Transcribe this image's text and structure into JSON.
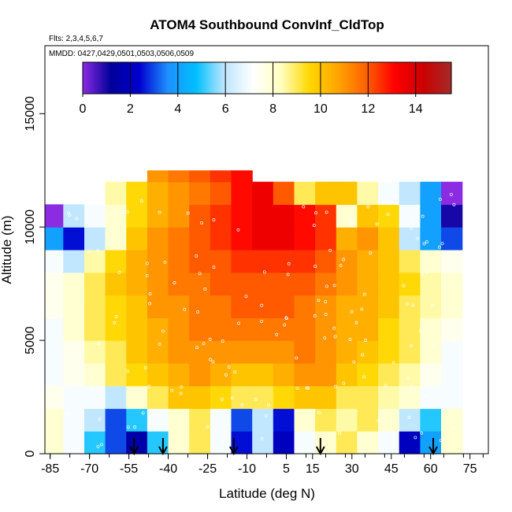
{
  "chart_data": {
    "type": "heatmap",
    "title": "ATOM4 Southbound ConvInf_CldTop",
    "notes": [
      "Flts: 2,3,4,5,6,7",
      "MMDD: 0427,0429,0501,0503,0506,0509"
    ],
    "xlabel": "Latitude (deg N)",
    "ylabel": "Altitude (m)",
    "xlim": [
      -87,
      82
    ],
    "ylim": [
      0,
      18000
    ],
    "x_ticks": [
      -85,
      -70,
      -55,
      -40,
      -25,
      -10,
      5,
      15,
      30,
      45,
      60,
      75
    ],
    "y_ticks": [
      0,
      5000,
      10000,
      15000
    ],
    "colorbar": {
      "ticks": [
        0,
        2,
        4,
        6,
        8,
        10,
        12,
        14
      ],
      "range": [
        0,
        15.5
      ],
      "colors": [
        "#8b2be2",
        "#00009a",
        "#0000d0",
        "#1e90ff",
        "#00bfff",
        "#bfe6ff",
        "#ffffff",
        "#ffffc0",
        "#ffd700",
        "#ffa500",
        "#ff6000",
        "#ff0000",
        "#cc0000",
        "#a52a2a"
      ]
    },
    "arrows_lat": [
      -53,
      -42,
      -15,
      18,
      61
    ],
    "profile": {
      "lat_edges": [
        -87,
        -80,
        -72,
        -64,
        -56,
        -48,
        -40,
        -32,
        -24,
        -16,
        -8,
        0,
        8,
        16,
        24,
        32,
        40,
        48,
        56,
        64,
        72
      ],
      "alt_bands": [
        {
          "from": 0,
          "to": 1000,
          "values": [
            8,
            7,
            5,
            3,
            1.5,
            5,
            8,
            9,
            7,
            2.5,
            6,
            2,
            7,
            8,
            9,
            8,
            7,
            2,
            4,
            8
          ]
        },
        {
          "from": 1000,
          "to": 2000,
          "values": [
            8,
            7,
            6,
            3,
            5,
            7,
            8,
            9,
            7,
            3,
            6,
            2.5,
            8,
            9,
            8.5,
            9,
            8,
            6,
            5,
            8
          ]
        },
        {
          "from": 2000,
          "to": 3000,
          "values": [
            7.5,
            7,
            7,
            6,
            8,
            9,
            10,
            10,
            9.5,
            9,
            9,
            9.5,
            10,
            10,
            9,
            9,
            8.5,
            8,
            7,
            7
          ]
        },
        {
          "from": 3000,
          "to": 4000,
          "values": [
            7,
            7.5,
            8,
            9,
            9.5,
            10,
            10.5,
            11,
            10.5,
            10,
            10,
            10.5,
            11,
            11,
            10,
            9.5,
            9,
            8.5,
            7.5,
            7
          ]
        },
        {
          "from": 4000,
          "to": 5000,
          "values": [
            7,
            7.5,
            8.5,
            9,
            10,
            10.5,
            11,
            11,
            11,
            11,
            11,
            11,
            11.5,
            11,
            10.5,
            10,
            9.5,
            9,
            8,
            7
          ]
        },
        {
          "from": 5000,
          "to": 6000,
          "values": [
            7,
            8,
            9,
            9.5,
            10,
            10.5,
            11,
            11.5,
            11.5,
            11.5,
            11.5,
            11.5,
            11.5,
            11,
            10.5,
            10.5,
            9.5,
            9,
            8,
            7.5
          ]
        },
        {
          "from": 6000,
          "to": 7000,
          "values": [
            7.5,
            8,
            9,
            9.5,
            10,
            11,
            11,
            11.5,
            11.5,
            12,
            12,
            12,
            11.5,
            11,
            10.5,
            10.5,
            10,
            9,
            8.5,
            8
          ]
        },
        {
          "from": 7000,
          "to": 8000,
          "values": [
            7.5,
            8,
            9,
            10,
            10.5,
            11,
            11.5,
            11.5,
            12,
            12,
            12,
            12,
            12,
            11.5,
            11,
            10.5,
            10,
            9.5,
            8.5,
            8
          ]
        },
        {
          "from": 8000,
          "to": 9000,
          "values": [
            7,
            6,
            8.5,
            9.5,
            10.5,
            11,
            11.5,
            12,
            12,
            12.5,
            12.5,
            12.5,
            12.5,
            12,
            11,
            10.5,
            10,
            9,
            8,
            7.5
          ]
        },
        {
          "from": 9000,
          "to": 10000,
          "values": [
            4,
            2.5,
            6,
            8,
            10,
            11,
            11.5,
            12,
            12.5,
            13,
            13.5,
            13.5,
            13,
            12.5,
            10.5,
            11,
            10,
            6,
            4,
            3
          ]
        },
        {
          "from": 10000,
          "to": 11000,
          "values": [
            0,
            6,
            7,
            8,
            9.5,
            10.5,
            11,
            12,
            12.5,
            13,
            13.5,
            13.5,
            13,
            12.5,
            8,
            10,
            9.5,
            7,
            4,
            1
          ]
        },
        {
          "from": 11000,
          "to": 12000,
          "values": [
            null,
            null,
            null,
            8.5,
            9.5,
            10.5,
            11,
            11.5,
            12,
            13,
            13.5,
            12,
            9,
            10,
            10,
            8.5,
            7,
            6,
            4,
            0
          ]
        },
        {
          "from": 12000,
          "to": 12500,
          "values": [
            null,
            null,
            null,
            null,
            null,
            11,
            11.5,
            12,
            12.5,
            13,
            null,
            null,
            null,
            null,
            null,
            null,
            null,
            null,
            null,
            null
          ]
        }
      ]
    }
  }
}
